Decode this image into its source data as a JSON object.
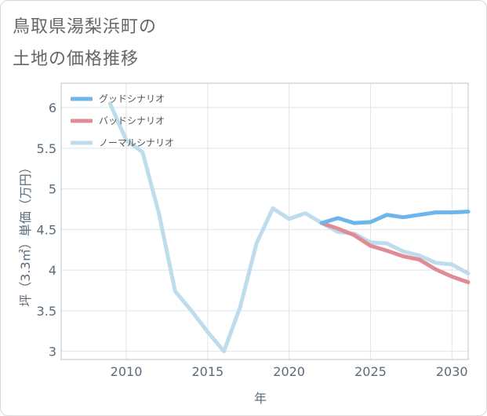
{
  "title": {
    "line1": "鳥取県湯梨浜町の",
    "line2": "土地の価格推移"
  },
  "chart_data": {
    "type": "line",
    "xlabel": "年",
    "ylabel": "坪（3.3㎡）単価（万円）",
    "xlim": [
      2006,
      2031
    ],
    "ylim": [
      2.9,
      6.3
    ],
    "x_ticks": [
      2010,
      2015,
      2020,
      2025,
      2030
    ],
    "y_ticks": [
      3,
      3.5,
      4,
      4.5,
      5,
      5.5,
      6
    ],
    "y_tick_labels": [
      "3",
      "3.5",
      "4",
      "4.5",
      "5",
      "5.5",
      "6"
    ],
    "grid": true,
    "legend_position": "top-left",
    "series": [
      {
        "name": "グッドシナリオ",
        "color": "#6cb6ec",
        "x": [
          2022,
          2023,
          2024,
          2025,
          2026,
          2027,
          2028,
          2029,
          2030,
          2031
        ],
        "y": [
          4.58,
          4.64,
          4.58,
          4.59,
          4.68,
          4.65,
          4.68,
          4.71,
          4.71,
          4.72
        ]
      },
      {
        "name": "バッドシナリオ",
        "color": "#e08c96",
        "x": [
          2022,
          2023,
          2024,
          2025,
          2026,
          2027,
          2028,
          2029,
          2030,
          2031
        ],
        "y": [
          4.58,
          4.51,
          4.43,
          4.3,
          4.24,
          4.17,
          4.13,
          4.01,
          3.92,
          3.85
        ]
      },
      {
        "name": "ノーマルシナリオ",
        "color": "#bedcec",
        "x": [
          2009,
          2010,
          2011,
          2012,
          2013,
          2014,
          2015,
          2016,
          2017,
          2018,
          2019,
          2020,
          2021,
          2022,
          2023,
          2024,
          2025,
          2026,
          2027,
          2028,
          2029,
          2030,
          2031
        ],
        "y": [
          6.05,
          5.6,
          5.45,
          4.7,
          3.74,
          3.5,
          3.24,
          3.0,
          3.55,
          4.33,
          4.76,
          4.63,
          4.7,
          4.58,
          4.47,
          4.45,
          4.34,
          4.33,
          4.23,
          4.18,
          4.09,
          4.07,
          3.96
        ]
      }
    ]
  }
}
